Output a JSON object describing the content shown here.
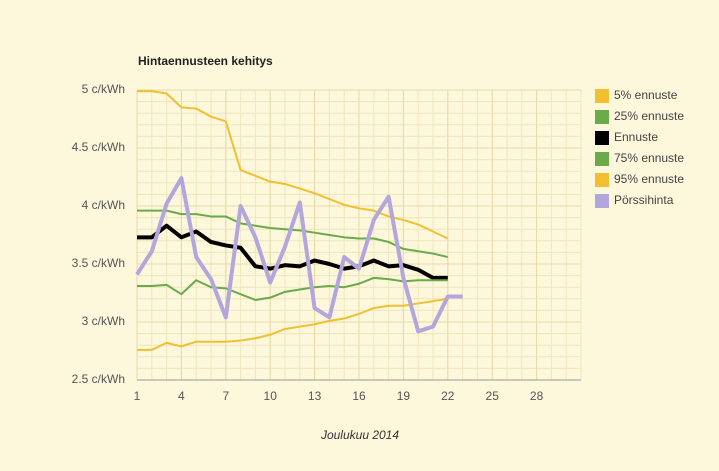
{
  "chart_data": {
    "type": "line",
    "title": "Hintaennusteen kehitys",
    "x_label": "Joulukuu 2014",
    "x": [
      1,
      2,
      3,
      4,
      5,
      6,
      7,
      8,
      9,
      10,
      11,
      12,
      13,
      14,
      15,
      16,
      17,
      18,
      19,
      20,
      21,
      22,
      23
    ],
    "xlim": [
      1,
      31
    ],
    "xticks": [
      1,
      4,
      7,
      10,
      13,
      16,
      19,
      22,
      25,
      28
    ],
    "ylim": [
      2.5,
      5
    ],
    "yticks": [
      {
        "value": 2.5,
        "label": "2.5 c/kWh"
      },
      {
        "value": 3,
        "label": "3 c/kWh"
      },
      {
        "value": 3.5,
        "label": "3.5 c/kWh"
      },
      {
        "value": 4,
        "label": "4 c/kWh"
      },
      {
        "value": 4.5,
        "label": "4.5 c/kWh"
      },
      {
        "value": 5,
        "label": "5 c/kWh"
      }
    ],
    "grid": true,
    "legend": "right",
    "series": [
      {
        "name": "5% ennuste",
        "color": "#f0c030",
        "width": 2,
        "values": [
          4.99,
          4.99,
          4.97,
          4.85,
          4.84,
          4.77,
          4.73,
          4.31,
          4.26,
          4.21,
          4.19,
          4.15,
          4.11,
          4.06,
          4.01,
          3.98,
          3.96,
          3.91,
          3.88,
          3.84,
          3.78,
          3.72,
          null
        ]
      },
      {
        "name": "25% ennuste",
        "color": "#6aaa4a",
        "width": 2,
        "values": [
          3.96,
          3.96,
          3.96,
          3.93,
          3.93,
          3.91,
          3.91,
          3.85,
          3.83,
          3.81,
          3.8,
          3.79,
          3.77,
          3.75,
          3.73,
          3.72,
          3.72,
          3.69,
          3.63,
          3.61,
          3.59,
          3.56,
          null
        ]
      },
      {
        "name": "Ennuste",
        "color": "#000000",
        "width": 4,
        "values": [
          3.73,
          3.73,
          3.83,
          3.73,
          3.78,
          3.69,
          3.66,
          3.64,
          3.48,
          3.46,
          3.49,
          3.48,
          3.53,
          3.5,
          3.46,
          3.48,
          3.53,
          3.48,
          3.49,
          3.45,
          3.38,
          3.38,
          null
        ]
      },
      {
        "name": "75% ennuste",
        "color": "#6aaa4a",
        "width": 2,
        "values": [
          3.31,
          3.31,
          3.32,
          3.24,
          3.36,
          3.3,
          3.29,
          3.24,
          3.19,
          3.21,
          3.26,
          3.28,
          3.3,
          3.31,
          3.3,
          3.33,
          3.38,
          3.37,
          3.35,
          3.36,
          3.36,
          3.36,
          null
        ]
      },
      {
        "name": "95% ennuste",
        "color": "#f0c030",
        "width": 2,
        "values": [
          2.76,
          2.76,
          2.82,
          2.79,
          2.83,
          2.83,
          2.83,
          2.84,
          2.86,
          2.89,
          2.94,
          2.96,
          2.98,
          3.01,
          3.03,
          3.07,
          3.12,
          3.14,
          3.14,
          3.16,
          3.18,
          3.2,
          null
        ]
      },
      {
        "name": "Pörssihinta",
        "color": "#b3a6dd",
        "width": 4,
        "values": [
          3.41,
          3.61,
          4.02,
          4.24,
          3.56,
          3.37,
          3.04,
          4.0,
          3.73,
          3.34,
          3.65,
          4.03,
          3.12,
          3.04,
          3.56,
          3.46,
          3.88,
          4.08,
          3.38,
          2.92,
          2.96,
          3.22,
          3.22
        ]
      }
    ]
  }
}
